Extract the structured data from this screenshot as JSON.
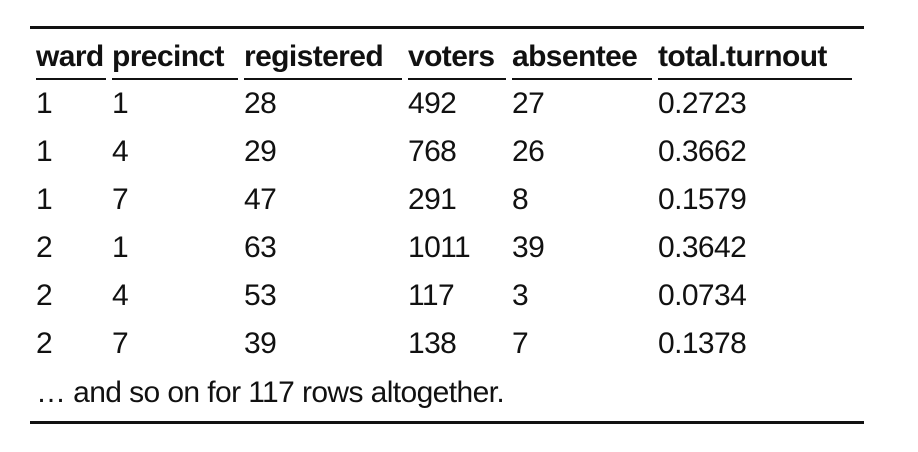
{
  "table": {
    "columns": [
      "ward",
      "precinct",
      "registered",
      "voters",
      "absentee",
      "total.turnout"
    ],
    "rows": [
      [
        "1",
        "1",
        "28",
        "492",
        "27",
        "0.2723"
      ],
      [
        "1",
        "4",
        "29",
        "768",
        "26",
        "0.3662"
      ],
      [
        "1",
        "7",
        "47",
        "291",
        "8",
        "0.1579"
      ],
      [
        "2",
        "1",
        "63",
        "1011",
        "39",
        "0.3642"
      ],
      [
        "2",
        "4",
        "53",
        "117",
        "3",
        "0.0734"
      ],
      [
        "2",
        "7",
        "39",
        "138",
        "7",
        "0.1378"
      ]
    ]
  },
  "footnote": "… and so on for 117 rows altogether."
}
